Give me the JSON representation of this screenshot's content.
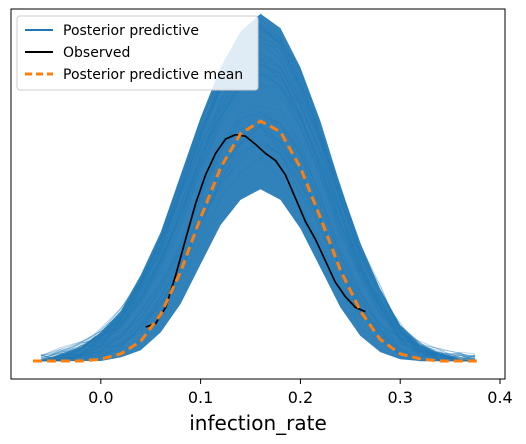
{
  "chart_data": {
    "type": "line",
    "title": "",
    "xlabel": "infection_rate",
    "ylabel": "",
    "xlim": [
      -0.09,
      0.405
    ],
    "ylim": [
      0,
      1.0
    ],
    "x_ticks": [
      {
        "value": 0.0,
        "label": "0.0"
      },
      {
        "value": 0.1,
        "label": "0.1"
      },
      {
        "value": 0.2,
        "label": "0.2"
      },
      {
        "value": 0.3,
        "label": "0.3"
      },
      {
        "value": 0.4,
        "label": "0.4"
      }
    ],
    "y_ticks_shown": false,
    "grid": false,
    "legend": {
      "placement": "top-left",
      "entries": [
        {
          "label": "Posterior predictive",
          "color": "#1f77b4",
          "style": "solid-thin"
        },
        {
          "label": "Observed",
          "color": "#000000",
          "style": "solid"
        },
        {
          "label": "Posterior predictive mean",
          "color": "#ff7f0e",
          "style": "dashed"
        }
      ]
    },
    "series": [
      {
        "name": "Observed",
        "color": "#000000",
        "x": [
          0.045,
          0.055,
          0.065,
          0.075,
          0.085,
          0.095,
          0.105,
          0.115,
          0.125,
          0.135,
          0.145,
          0.155,
          0.165,
          0.175,
          0.185,
          0.195,
          0.205,
          0.215,
          0.225,
          0.235,
          0.245,
          0.255,
          0.265
        ],
        "y": [
          0.095,
          0.105,
          0.15,
          0.24,
          0.34,
          0.44,
          0.52,
          0.58,
          0.62,
          0.632,
          0.628,
          0.605,
          0.58,
          0.56,
          0.52,
          0.455,
          0.39,
          0.34,
          0.28,
          0.22,
          0.18,
          0.15,
          0.138
        ]
      },
      {
        "name": "Posterior predictive mean",
        "color": "#ff7f0e",
        "x": [
          -0.068,
          -0.04,
          -0.02,
          0.0,
          0.02,
          0.04,
          0.06,
          0.08,
          0.1,
          0.12,
          0.14,
          0.16,
          0.18,
          0.2,
          0.22,
          0.24,
          0.26,
          0.28,
          0.3,
          0.32,
          0.34,
          0.36,
          0.38
        ],
        "y": [
          0.0,
          0.0,
          0.0,
          0.005,
          0.02,
          0.055,
          0.13,
          0.25,
          0.4,
          0.54,
          0.635,
          0.67,
          0.64,
          0.54,
          0.4,
          0.255,
          0.14,
          0.06,
          0.02,
          0.006,
          0.0,
          0.0,
          0.0
        ]
      }
    ],
    "posterior_band": {
      "name": "Posterior predictive",
      "color": "#1f77b4",
      "x": [
        -0.06,
        -0.04,
        -0.02,
        0.0,
        0.02,
        0.04,
        0.06,
        0.08,
        0.1,
        0.12,
        0.14,
        0.16,
        0.18,
        0.2,
        0.22,
        0.24,
        0.26,
        0.28,
        0.3,
        0.32,
        0.34,
        0.36,
        0.375
      ],
      "y_low": [
        0.0,
        0.0,
        0.0,
        0.0,
        0.01,
        0.03,
        0.08,
        0.16,
        0.27,
        0.38,
        0.45,
        0.48,
        0.45,
        0.37,
        0.26,
        0.15,
        0.07,
        0.025,
        0.005,
        0.0,
        0.0,
        0.0,
        0.0
      ],
      "y_high": [
        0.0,
        0.02,
        0.04,
        0.08,
        0.14,
        0.24,
        0.36,
        0.52,
        0.68,
        0.82,
        0.92,
        0.97,
        0.93,
        0.82,
        0.67,
        0.49,
        0.33,
        0.2,
        0.1,
        0.045,
        0.02,
        0.006,
        0.0
      ]
    }
  }
}
